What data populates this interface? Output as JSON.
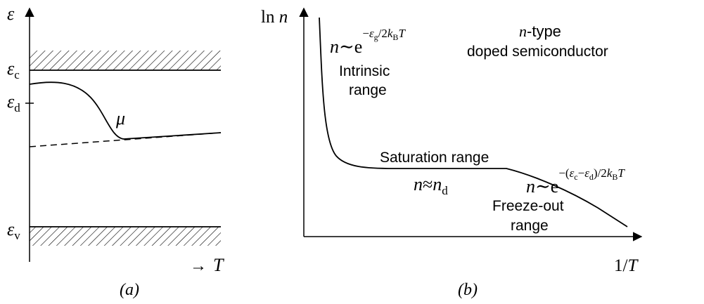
{
  "panel_a": {
    "y_axis_label": "ε",
    "x_axis_arrow": "→",
    "x_axis_label": "T",
    "level_c_base": "ε",
    "level_c_sub": "c",
    "level_d_base": "ε",
    "level_d_sub": "d",
    "level_v_base": "ε",
    "level_v_sub": "v",
    "mu_label": "μ",
    "caption": "(a)"
  },
  "panel_b": {
    "y_axis_label_ln": "ln",
    "y_axis_label_n": "n",
    "x_axis_label": "1/T",
    "title_n": "n",
    "title_line1_rest": "-type",
    "title_line2": "doped semiconductor",
    "intrinsic_line1": "Intrinsic",
    "intrinsic_line2": "range",
    "saturation_label": "Saturation range",
    "freeze_line1": "Freeze-out",
    "freeze_line2": "range",
    "formula_intrinsic": {
      "n": "n",
      "sim": "∼",
      "e": "e",
      "exp_minus": "−",
      "exp_eps": "ε",
      "exp_eps_sub": "g",
      "exp_div": "/2",
      "exp_k": "k",
      "exp_k_sub": "B",
      "exp_T": "T"
    },
    "formula_saturation": {
      "n": "n",
      "approx": "≈",
      "n2": "n",
      "sub": "d"
    },
    "formula_freeze": {
      "n": "n",
      "sim": "∼",
      "e": "e",
      "exp_minus": "−(",
      "exp_eps1": "ε",
      "exp_eps1_sub": "c",
      "exp_mid": "−",
      "exp_eps2": "ε",
      "exp_eps2_sub": "d",
      "exp_div": ")/2",
      "exp_k": "k",
      "exp_k_sub": "B",
      "exp_T": "T"
    },
    "caption": "(b)"
  }
}
